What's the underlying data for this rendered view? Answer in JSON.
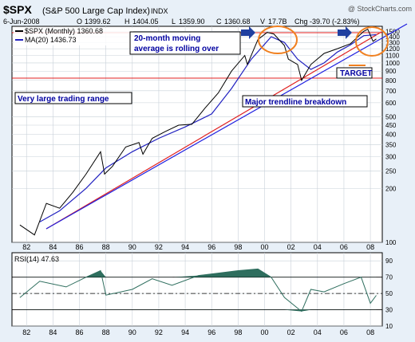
{
  "header": {
    "symbol": "$SPX",
    "name": "(S&P 500 Large Cap Index)",
    "exchange": "INDX",
    "watermark": "@ StockCharts.com",
    "date": "6-Jun-2008",
    "open_label": "O",
    "open": "1399.62",
    "high_label": "H",
    "high": "1404.05",
    "low_label": "L",
    "low": "1359.90",
    "close_label": "C",
    "close": "1360.68",
    "volume_label": "V",
    "volume": "17.7B",
    "chg_label": "Chg",
    "chg": "-39.70 (-2.83%)"
  },
  "legend": {
    "price": "$SPX (Monthly) 1360.68",
    "ma": "MA(20) 1436.73"
  },
  "annotations": {
    "ma_note_line1": "20-month moving",
    "ma_note_line2": "average is rolling over",
    "target": "TARGET",
    "range": "Very large trading range",
    "trend": "Major trendline breakdown"
  },
  "rsi_label": "RSI(14) 47.63",
  "colors": {
    "background": "#e8f0f8",
    "plot": "#ffffff",
    "price": "#000000",
    "ma": "#2020c0",
    "red_line": "#e02020",
    "blue_line": "#2020e0",
    "rsi_fill": "#2e6e5e",
    "arrow": "#2040a0",
    "circle": "#f08020",
    "text_blue": "#0000a0"
  },
  "chart_data": [
    {
      "type": "line",
      "title": "$SPX (S&P 500 Large Cap Index) INDX",
      "scale": "log",
      "ylim": [
        100,
        1600
      ],
      "y_ticks": [
        100,
        200,
        250,
        300,
        350,
        400,
        450,
        500,
        600,
        700,
        800,
        900,
        1000,
        1100,
        1200,
        1300,
        1400,
        1500
      ],
      "x_ticks": [
        "82",
        "84",
        "86",
        "88",
        "90",
        "92",
        "94",
        "96",
        "98",
        "00",
        "02",
        "04",
        "06",
        "08"
      ],
      "series": [
        {
          "name": "$SPX (Monthly)",
          "x": [
            1981.5,
            1982.6,
            1983.5,
            1984.5,
            1985.5,
            1986.5,
            1987.6,
            1987.9,
            1988.5,
            1989.5,
            1990.5,
            1990.8,
            1991.5,
            1992.5,
            1993.5,
            1994.5,
            1995.5,
            1996.5,
            1997.5,
            1998.5,
            1998.7,
            1999.5,
            2000.2,
            2000.7,
            2001.5,
            2001.8,
            2002.5,
            2002.8,
            2003.5,
            2004.5,
            2005.5,
            2006.5,
            2007.5,
            2007.8,
            2008.2,
            2008.45
          ],
          "values": [
            125,
            110,
            165,
            155,
            190,
            240,
            320,
            240,
            265,
            340,
            360,
            310,
            380,
            415,
            450,
            455,
            560,
            680,
            900,
            1100,
            980,
            1350,
            1480,
            1450,
            1250,
            1050,
            980,
            800,
            980,
            1130,
            1200,
            1280,
            1500,
            1540,
            1320,
            1360.68
          ]
        },
        {
          "name": "MA(20)",
          "x": [
            1983.0,
            1984.5,
            1986.5,
            1988.0,
            1990.0,
            1992.0,
            1994.0,
            1996.0,
            1997.5,
            1999.0,
            2000.5,
            2001.5,
            2002.5,
            2003.5,
            2004.5,
            2005.5,
            2006.5,
            2007.5,
            2008.45
          ],
          "values": [
            130,
            150,
            200,
            260,
            320,
            380,
            440,
            520,
            720,
            1050,
            1400,
            1300,
            1050,
            920,
            1000,
            1150,
            1260,
            1420,
            1436.73
          ]
        }
      ]
    },
    {
      "type": "area",
      "title": "RSI(14)",
      "ylim": [
        10,
        100
      ],
      "y_ticks": [
        10,
        30,
        50,
        70,
        90
      ],
      "series": [
        {
          "name": "RSI(14)",
          "x": [
            1981.5,
            1983,
            1985,
            1986.5,
            1987.6,
            1988,
            1990,
            1991.5,
            1993,
            1995,
            1996.5,
            1998,
            1999.5,
            2000.5,
            2001.5,
            2002.8,
            2003.5,
            2004.5,
            2006,
            2007.3,
            2008,
            2008.45
          ],
          "values": [
            45,
            65,
            58,
            70,
            78,
            48,
            55,
            68,
            60,
            72,
            75,
            78,
            80,
            70,
            45,
            28,
            55,
            52,
            62,
            70,
            38,
            47.63
          ]
        }
      ]
    }
  ]
}
